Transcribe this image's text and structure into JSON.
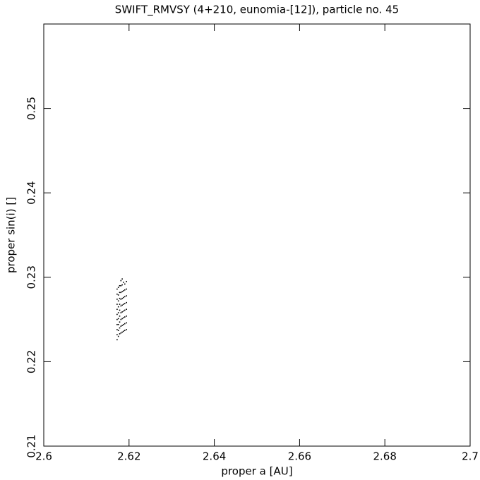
{
  "chart_data": {
    "type": "scatter",
    "title": "SWIFT_RMVSY (4+210, eunomia-[12]), particle no. 45",
    "x_label": "proper a [AU]",
    "y_label": "proper sin(i) []",
    "xlim": [
      2.6,
      2.7
    ],
    "xticks": [
      2.6,
      2.62,
      2.64,
      2.66,
      2.68,
      2.7
    ],
    "ylim": [
      0.21,
      0.26
    ],
    "yticks": [
      0.21,
      0.22,
      0.23,
      0.24,
      0.25
    ],
    "color": "#000000",
    "series": [
      {
        "x": [
          2.6172,
          2.6172,
          2.6172,
          2.6172,
          2.6172,
          2.6172,
          2.6172,
          2.6172,
          2.6172,
          2.6172,
          2.6172,
          2.6175,
          2.6175,
          2.6175,
          2.6175,
          2.6175,
          2.6175,
          2.6175,
          2.6175,
          2.6175,
          2.6178,
          2.6178,
          2.6178,
          2.6178,
          2.6178,
          2.6178,
          2.6178,
          2.6178,
          2.6178,
          2.6181,
          2.6181,
          2.6181,
          2.6181,
          2.6181,
          2.6181,
          2.6181,
          2.6181,
          2.6181,
          2.6184,
          2.6184,
          2.6184,
          2.6184,
          2.6184,
          2.6184,
          2.6184,
          2.6184,
          2.6184,
          2.6187,
          2.6187,
          2.6187,
          2.6187,
          2.6187,
          2.6187,
          2.6187,
          2.6187,
          2.619,
          2.619,
          2.619,
          2.619,
          2.619,
          2.619,
          2.619,
          2.619,
          2.6194,
          2.6194,
          2.6194,
          2.6194,
          2.6194,
          2.6194,
          2.6194,
          2.6194
        ],
        "values": [
          0.2226,
          0.2232,
          0.2238,
          0.2244,
          0.225,
          0.2256,
          0.2262,
          0.2268,
          0.2274,
          0.228,
          0.2286,
          0.223,
          0.2237,
          0.2244,
          0.2251,
          0.2258,
          0.2265,
          0.2272,
          0.2279,
          0.2288,
          0.2233,
          0.224,
          0.2247,
          0.2254,
          0.2261,
          0.2268,
          0.2275,
          0.2282,
          0.229,
          0.2234,
          0.2242,
          0.225,
          0.2258,
          0.2266,
          0.2274,
          0.2282,
          0.229,
          0.2296,
          0.2235,
          0.2243,
          0.2251,
          0.2259,
          0.2267,
          0.2275,
          0.2283,
          0.2291,
          0.2298,
          0.2236,
          0.2244,
          0.2252,
          0.226,
          0.2268,
          0.2276,
          0.2284,
          0.2294,
          0.2237,
          0.2245,
          0.2253,
          0.2261,
          0.2269,
          0.2277,
          0.2285,
          0.2292,
          0.2238,
          0.2246,
          0.2254,
          0.2262,
          0.227,
          0.2278,
          0.2286,
          0.2295
        ]
      }
    ]
  }
}
